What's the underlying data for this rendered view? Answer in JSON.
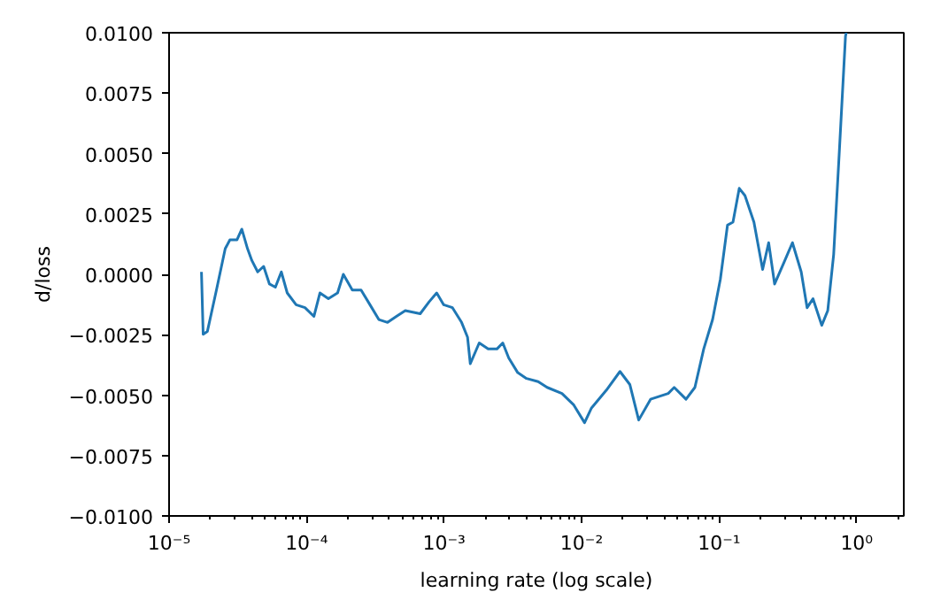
{
  "chart_data": {
    "type": "line",
    "xlabel": "learning rate (log scale)",
    "ylabel": "d/loss",
    "log": "x",
    "grid": false,
    "marker": "none",
    "line_style": "solid",
    "xlim": [
      1e-05,
      2.2
    ],
    "xticks": [
      {
        "value": 1e-05,
        "label": "10⁻⁵"
      },
      {
        "value": 0.0001,
        "label": "10⁻⁴"
      },
      {
        "value": 0.001,
        "label": "10⁻³"
      },
      {
        "value": 0.01,
        "label": "10⁻²"
      },
      {
        "value": 0.1,
        "label": "10⁻¹"
      },
      {
        "value": 1,
        "label": "10⁰"
      }
    ],
    "ylim": [
      -0.01,
      0.01
    ],
    "yticks": [
      {
        "value": -0.01,
        "label": "−0.0100"
      },
      {
        "value": -0.0075,
        "label": "−0.0075"
      },
      {
        "value": -0.005,
        "label": "−0.0050"
      },
      {
        "value": -0.0025,
        "label": "−0.0025"
      },
      {
        "value": 0,
        "label": "0.0000"
      },
      {
        "value": 0.0025,
        "label": "0.0025"
      },
      {
        "value": 0.005,
        "label": "0.0050"
      },
      {
        "value": 0.0075,
        "label": "0.0075"
      },
      {
        "value": 0.01,
        "label": "0.0100"
      }
    ],
    "series": [
      {
        "color": "#1f77b4",
        "x": [
          1.72e-05,
          1.77e-05,
          1.9e-05,
          2.21e-05,
          2.56e-05,
          2.77e-05,
          3.12e-05,
          3.38e-05,
          3.72e-05,
          4e-05,
          4.41e-05,
          4.87e-05,
          5.37e-05,
          5.93e-05,
          6.55e-05,
          7.23e-05,
          8.39e-05,
          9.73e-05,
          0.000113,
          0.000125,
          0.000144,
          0.000168,
          0.000185,
          0.000215,
          0.000249,
          0.000289,
          0.000335,
          0.000388,
          0.00045,
          0.000522,
          0.00067,
          0.000777,
          0.000883,
          0.000993,
          0.00115,
          0.00134,
          0.00148,
          0.00155,
          0.0018,
          0.00209,
          0.00242,
          0.00267,
          0.00295,
          0.00343,
          0.00397,
          0.00483,
          0.00561,
          0.00719,
          0.00877,
          0.0105,
          0.0118,
          0.0151,
          0.019,
          0.0224,
          0.026,
          0.0317,
          0.0426,
          0.0471,
          0.0574,
          0.0666,
          0.0772,
          0.0896,
          0.102,
          0.115,
          0.126,
          0.14,
          0.154,
          0.179,
          0.207,
          0.229,
          0.253,
          0.294,
          0.341,
          0.395,
          0.436,
          0.481,
          0.557,
          0.616,
          0.68,
          0.75,
          0.829,
          0.84
        ],
        "values": [
          0.0001,
          -0.00248,
          -0.00236,
          -0.00065,
          0.00106,
          0.00143,
          0.00143,
          0.00187,
          0.00106,
          0.00057,
          0.0001,
          0.00033,
          -0.0004,
          -0.00053,
          0.0001,
          -0.00077,
          -0.00126,
          -0.00138,
          -0.00174,
          -0.00077,
          -0.00101,
          -0.00077,
          0,
          -0.00065,
          -0.00065,
          -0.00126,
          -0.00187,
          -0.00199,
          -0.00174,
          -0.0015,
          -0.00163,
          -0.00114,
          -0.00077,
          -0.00126,
          -0.00138,
          -0.00199,
          -0.0026,
          -0.0037,
          -0.00284,
          -0.00309,
          -0.00309,
          -0.00284,
          -0.00346,
          -0.00407,
          -0.00431,
          -0.00444,
          -0.00468,
          -0.00493,
          -0.00541,
          -0.00614,
          -0.00553,
          -0.0048,
          -0.00402,
          -0.00456,
          -0.00603,
          -0.00517,
          -0.00493,
          -0.00468,
          -0.00517,
          -0.00468,
          -0.00309,
          -0.00187,
          -0.0002,
          0.00204,
          0.00216,
          0.00356,
          0.00326,
          0.00216,
          0.0002,
          0.00131,
          -0.0004,
          0.00045,
          0.00131,
          0.0001,
          -0.00138,
          -0.00101,
          -0.00211,
          -0.0015,
          0.00082,
          0.00522,
          0.00986,
          0.01
        ]
      }
    ]
  }
}
